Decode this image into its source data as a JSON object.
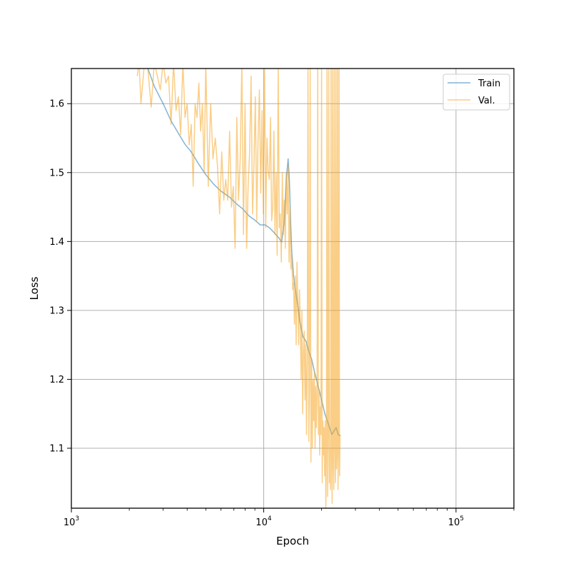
{
  "chart_data": {
    "type": "line",
    "xlabel": "Epoch",
    "ylabel": "Loss",
    "xscale": "log",
    "xlim": [
      1000,
      200000
    ],
    "ylim": [
      1.013,
      1.651
    ],
    "grid": true,
    "legend_position": "top-right",
    "x_major_ticks": [
      {
        "value": 1000,
        "base": "10",
        "exp": "3"
      },
      {
        "value": 10000,
        "base": "10",
        "exp": "4"
      },
      {
        "value": 100000,
        "base": "10",
        "exp": "5"
      }
    ],
    "x_minor_ticks": [
      2000,
      3000,
      4000,
      5000,
      6000,
      7000,
      8000,
      9000,
      20000,
      30000,
      40000,
      50000,
      60000,
      70000,
      80000,
      90000,
      200000
    ],
    "y_ticks": [
      {
        "value": 1.1,
        "label": "1.1"
      },
      {
        "value": 1.2,
        "label": "1.2"
      },
      {
        "value": 1.3,
        "label": "1.3"
      },
      {
        "value": 1.4,
        "label": "1.4"
      },
      {
        "value": 1.5,
        "label": "1.5"
      },
      {
        "value": 1.6,
        "label": "1.6"
      }
    ],
    "series": [
      {
        "name": "Train",
        "color": "#1f77b4",
        "opacity": 0.55,
        "x": [
          2500,
          2700,
          3000,
          3300,
          3600,
          3900,
          4200,
          4600,
          5000,
          5500,
          6000,
          6600,
          7200,
          7800,
          8400,
          9000,
          9600,
          10200,
          10800,
          11400,
          12000,
          12400,
          12800,
          13100,
          13400,
          13600,
          13800,
          14000,
          14300,
          14600,
          15000,
          15400,
          16000,
          16600,
          17200,
          17800,
          18400,
          19000,
          19600,
          20200,
          20800,
          21400,
          22000,
          22600,
          23200,
          23800,
          24400,
          25000
        ],
        "y": [
          1.651,
          1.625,
          1.6,
          1.575,
          1.557,
          1.541,
          1.53,
          1.512,
          1.497,
          1.483,
          1.473,
          1.465,
          1.455,
          1.447,
          1.437,
          1.431,
          1.424,
          1.424,
          1.419,
          1.412,
          1.405,
          1.399,
          1.43,
          1.49,
          1.52,
          1.49,
          1.43,
          1.385,
          1.35,
          1.33,
          1.31,
          1.285,
          1.262,
          1.255,
          1.24,
          1.228,
          1.21,
          1.195,
          1.18,
          1.165,
          1.15,
          1.14,
          1.13,
          1.12,
          1.125,
          1.13,
          1.12,
          1.118
        ]
      },
      {
        "name": "Val.",
        "color": "#f5a623",
        "opacity": 0.55,
        "x": [
          2200,
          2250,
          2300,
          2400,
          2500,
          2600,
          2700,
          2800,
          2900,
          3000,
          3100,
          3200,
          3300,
          3400,
          3500,
          3600,
          3700,
          3800,
          3900,
          4000,
          4100,
          4200,
          4300,
          4400,
          4500,
          4600,
          4700,
          4800,
          4900,
          5000,
          5150,
          5300,
          5450,
          5600,
          5750,
          5900,
          6050,
          6200,
          6350,
          6500,
          6650,
          6800,
          6950,
          7100,
          7250,
          7400,
          7550,
          7700,
          7850,
          8000,
          8150,
          8300,
          8450,
          8600,
          8750,
          8900,
          9050,
          9200,
          9350,
          9500,
          9650,
          9800,
          9950,
          10100,
          10250,
          10400,
          10550,
          10700,
          10850,
          11000,
          11150,
          11300,
          11450,
          11600,
          11750,
          11900,
          12050,
          12200,
          12350,
          12500,
          12650,
          12800,
          12950,
          13100,
          13250,
          13400,
          13550,
          13700,
          13850,
          14000,
          14150,
          14300,
          14450,
          14600,
          14750,
          14900,
          15050,
          15200,
          15350,
          15500,
          15650,
          15800,
          15950,
          16100,
          16250,
          16400,
          16550,
          16700,
          16850,
          17000,
          17150,
          17300,
          17450,
          17600,
          17750,
          17900,
          18050,
          18200,
          18350,
          18500,
          18650,
          18800,
          18950,
          19100,
          19250,
          19400,
          19550,
          19700,
          19850,
          20000,
          20150,
          20300,
          20450,
          20600,
          20750,
          20900,
          21050,
          21200,
          21350,
          21500,
          21650,
          21800,
          21950,
          22100,
          22250,
          22400,
          22550,
          22700,
          22850,
          23000,
          23150,
          23300,
          23450,
          23600,
          23750,
          23900,
          24050,
          24200,
          24350,
          24500,
          24650,
          24800,
          24950
        ],
        "y": [
          1.64,
          1.66,
          1.6,
          1.66,
          1.65,
          1.595,
          1.66,
          1.64,
          1.62,
          1.66,
          1.63,
          1.64,
          1.57,
          1.66,
          1.59,
          1.61,
          1.555,
          1.66,
          1.58,
          1.6,
          1.54,
          1.57,
          1.48,
          1.6,
          1.58,
          1.63,
          1.56,
          1.6,
          1.5,
          1.66,
          1.48,
          1.6,
          1.52,
          1.55,
          1.51,
          1.44,
          1.53,
          1.46,
          1.49,
          1.46,
          1.56,
          1.45,
          1.48,
          1.39,
          1.58,
          1.46,
          1.52,
          1.66,
          1.41,
          1.6,
          1.39,
          1.48,
          1.53,
          1.64,
          1.44,
          1.51,
          1.61,
          1.43,
          1.55,
          1.62,
          1.47,
          1.59,
          1.44,
          1.66,
          1.42,
          1.55,
          1.5,
          1.49,
          1.58,
          1.43,
          1.45,
          1.56,
          1.41,
          1.5,
          1.38,
          1.66,
          1.42,
          1.44,
          1.37,
          1.5,
          1.41,
          1.46,
          1.39,
          1.5,
          1.44,
          1.51,
          1.37,
          1.45,
          1.36,
          1.38,
          1.33,
          1.34,
          1.28,
          1.35,
          1.25,
          1.37,
          1.31,
          1.25,
          1.33,
          1.28,
          1.2,
          1.3,
          1.15,
          1.24,
          1.27,
          1.17,
          1.25,
          1.12,
          1.23,
          1.66,
          1.11,
          1.19,
          1.66,
          1.08,
          1.23,
          1.1,
          1.2,
          1.14,
          1.21,
          1.1,
          1.19,
          1.13,
          1.18,
          1.66,
          1.12,
          1.18,
          1.09,
          1.16,
          1.12,
          1.66,
          1.05,
          1.14,
          1.09,
          1.13,
          1.06,
          1.14,
          1.01,
          1.1,
          1.66,
          1.03,
          1.12,
          1.66,
          1.05,
          1.1,
          1.04,
          1.66,
          1.09,
          1.02,
          1.66,
          1.08,
          1.04,
          1.66,
          1.11,
          1.05,
          1.66,
          1.07,
          1.09,
          1.66,
          1.04,
          1.11,
          1.66,
          1.06,
          1.12
        ]
      }
    ]
  }
}
